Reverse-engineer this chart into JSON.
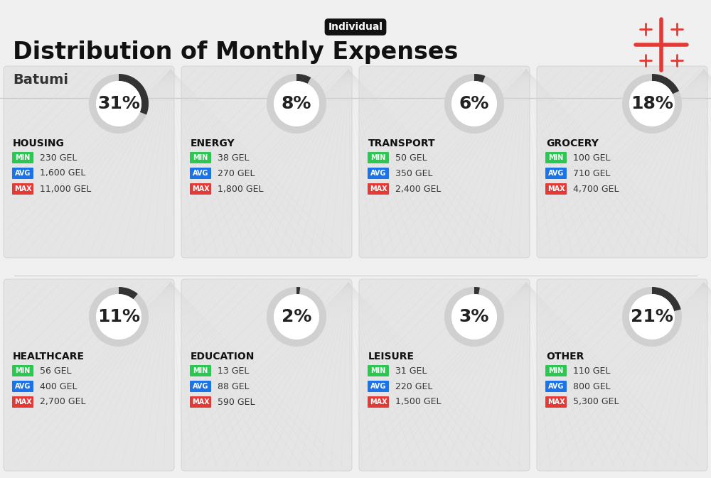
{
  "title": "Distribution of Monthly Expenses",
  "subtitle": "Individual",
  "location": "Batumi",
  "bg_color": "#f0f0f0",
  "categories": [
    {
      "name": "HOUSING",
      "pct": 31,
      "min": "230 GEL",
      "avg": "1,600 GEL",
      "max": "11,000 GEL",
      "row": 0,
      "col": 0
    },
    {
      "name": "ENERGY",
      "pct": 8,
      "min": "38 GEL",
      "avg": "270 GEL",
      "max": "1,800 GEL",
      "row": 0,
      "col": 1
    },
    {
      "name": "TRANSPORT",
      "pct": 6,
      "min": "50 GEL",
      "avg": "350 GEL",
      "max": "2,400 GEL",
      "row": 0,
      "col": 2
    },
    {
      "name": "GROCERY",
      "pct": 18,
      "min": "100 GEL",
      "avg": "710 GEL",
      "max": "4,700 GEL",
      "row": 0,
      "col": 3
    },
    {
      "name": "HEALTHCARE",
      "pct": 11,
      "min": "56 GEL",
      "avg": "400 GEL",
      "max": "2,700 GEL",
      "row": 1,
      "col": 0
    },
    {
      "name": "EDUCATION",
      "pct": 2,
      "min": "13 GEL",
      "avg": "88 GEL",
      "max": "590 GEL",
      "row": 1,
      "col": 1
    },
    {
      "name": "LEISURE",
      "pct": 3,
      "min": "31 GEL",
      "avg": "220 GEL",
      "max": "1,500 GEL",
      "row": 1,
      "col": 2
    },
    {
      "name": "OTHER",
      "pct": 21,
      "min": "110 GEL",
      "avg": "800 GEL",
      "max": "5,300 GEL",
      "row": 1,
      "col": 3
    }
  ],
  "min_color": "#2dc653",
  "avg_color": "#1a73e8",
  "max_color": "#e53935",
  "arc_color": "#333333",
  "arc_bg_color": "#d0d0d0",
  "cell_bg": "#e8e8e8",
  "label_color": "#111111",
  "pct_fontsize": 18,
  "name_fontsize": 10,
  "val_fontsize": 9,
  "badge_fontsize": 7
}
